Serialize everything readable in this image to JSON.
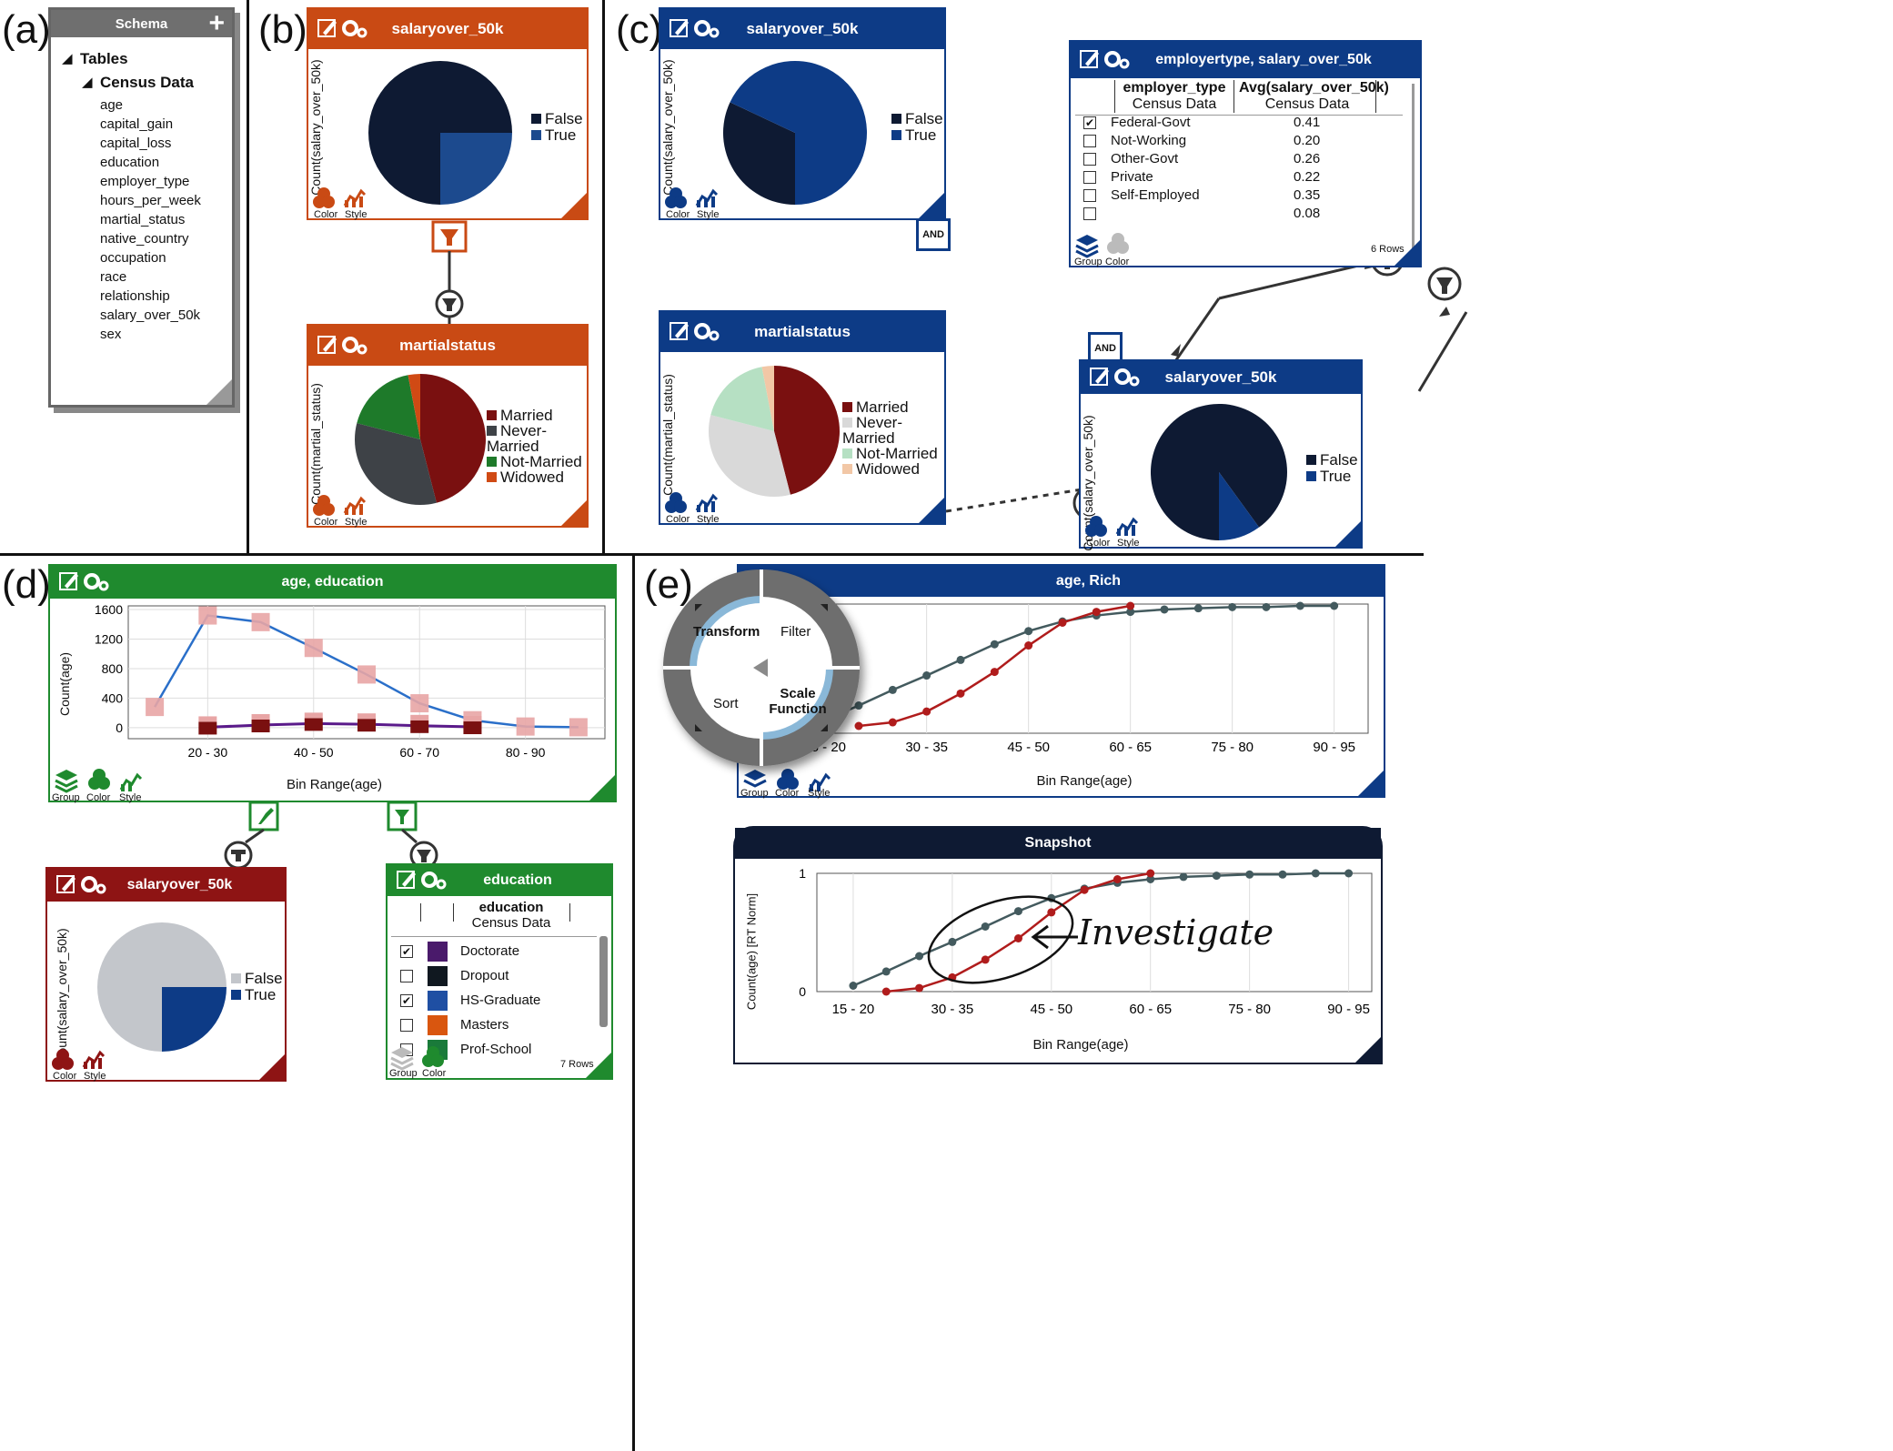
{
  "panel_labels": [
    "(a)",
    "(b)",
    "(c)",
    "(d)",
    "(e)"
  ],
  "schema": {
    "title": "Schema",
    "tables_label": "Tables",
    "table_name": "Census Data",
    "fields": [
      "age",
      "capital_gain",
      "capital_loss",
      "education",
      "employer_type",
      "hours_per_week",
      "martial_status",
      "native_country",
      "occupation",
      "race",
      "relationship",
      "salary_over_50k",
      "sex"
    ]
  },
  "footer": {
    "color": "Color",
    "style": "Style",
    "group": "Group"
  },
  "legend_salary": [
    "False",
    "True"
  ],
  "legend_marital": [
    "Married",
    "Never-Married",
    "Not-Married",
    "Widowed"
  ],
  "b": {
    "top_title": "salaryover_50k",
    "top_axis": "Count(salary_over_50k)",
    "bottom_title": "martialstatus",
    "bottom_axis": "Count(martial_status)"
  },
  "c": {
    "top_title": "salaryover_50k",
    "top_axis": "Count(salary_over_50k)",
    "mid_title": "martialstatus",
    "mid_axis": "Count(martial_status)",
    "and_label": "AND",
    "emp_title": "employertype, salary_over_50k",
    "emp_col1": "employer_type",
    "emp_col1_sub": "Census Data",
    "emp_col2": "Avg(salary_over_50k)",
    "emp_col2_sub": "Census Data",
    "emp_rows": [
      {
        "name": "Federal-Govt",
        "value": "0.41",
        "checked": true
      },
      {
        "name": "Not-Working",
        "value": "0.20",
        "checked": false
      },
      {
        "name": "Other-Govt",
        "value": "0.26",
        "checked": false
      },
      {
        "name": "Private",
        "value": "0.22",
        "checked": false
      },
      {
        "name": "Self-Employed",
        "value": "0.35",
        "checked": false
      },
      {
        "name": "",
        "value": "0.08",
        "checked": false
      }
    ],
    "emp_rowcount": "6  Rows",
    "br_title": "salaryover_50k",
    "br_axis": "Count(salary_over_50k)"
  },
  "d": {
    "chart_title": "age, education",
    "y_label": "Count(age)",
    "x_label": "Bin Range(age)",
    "salary_title": "salaryover_50k",
    "salary_axis": "Count(salary_over_50k)",
    "edu_title": "education",
    "edu_col": "education",
    "edu_col_sub": "Census Data",
    "edu_rows": [
      {
        "name": "Doctorate",
        "checked": true,
        "color": "#4a1a6b"
      },
      {
        "name": "Dropout",
        "checked": false,
        "color": "#101820"
      },
      {
        "name": "HS-Graduate",
        "checked": true,
        "color": "#1f4fa3"
      },
      {
        "name": "Masters",
        "checked": false,
        "color": "#d9560f"
      },
      {
        "name": "Prof-School",
        "checked": false,
        "color": "#1a7a3a"
      }
    ],
    "edu_rowcount": "7  Rows"
  },
  "e": {
    "chart_title": "age, Rich",
    "x_label": "Bin Range(age)",
    "menu": [
      "Transform",
      "Filter",
      "Sort",
      "Scale Function"
    ],
    "snapshot_title": "Snapshot",
    "snapshot_y_label": "Count(age) [RT Norm]",
    "snapshot_x_label": "Bin Range(age)",
    "annotation": "Investigate"
  },
  "colors": {
    "orange": "#c94a14",
    "blue": "#0d3b86",
    "green": "#1f8a2e",
    "darkred": "#8e1414",
    "navy": "#0e1a33",
    "gray_ring": "#6e6e6e"
  },
  "chart_data": [
    {
      "type": "pie",
      "name": "b-top",
      "labels": [
        "False",
        "True"
      ],
      "values": [
        75,
        25
      ]
    },
    {
      "type": "pie",
      "name": "b-bottom",
      "labels": [
        "Married",
        "Never-Married",
        "Not-Married",
        "Widowed"
      ],
      "values": [
        46,
        33,
        18,
        3
      ]
    },
    {
      "type": "pie",
      "name": "c-top",
      "labels": [
        "False",
        "True"
      ],
      "values": [
        32,
        68
      ]
    },
    {
      "type": "pie",
      "name": "c-mid",
      "labels": [
        "Married",
        "Never-Married",
        "Not-Married",
        "Widowed"
      ],
      "values": [
        46,
        33,
        18,
        3
      ]
    },
    {
      "type": "pie",
      "name": "c-bottom-right",
      "labels": [
        "False",
        "True"
      ],
      "values": [
        90,
        10
      ]
    },
    {
      "type": "pie",
      "name": "d-salary",
      "labels": [
        "False",
        "True"
      ],
      "values": [
        75,
        25
      ]
    },
    {
      "type": "line",
      "name": "d-age-education",
      "x_ticks": [
        "20 - 30",
        "40 - 50",
        "60 - 70",
        "80 - 90"
      ],
      "y_ticks": [
        "0",
        "400",
        "800",
        "1200",
        "1600"
      ],
      "ylim": [
        -150,
        1650
      ],
      "x": [
        15,
        25,
        35,
        45,
        55,
        65,
        75,
        85,
        95
      ],
      "series": [
        {
          "values": [
            280,
            1520,
            1430,
            1080,
            720,
            330,
            100,
            15,
            5
          ]
        },
        {
          "values": [
            null,
            5,
            35,
            55,
            45,
            25,
            10,
            null,
            null
          ]
        }
      ]
    },
    {
      "type": "line",
      "name": "e-age-rich",
      "x_ticks": [
        "15 - 20",
        "30 - 35",
        "45 - 50",
        "60 - 65",
        "75 - 80",
        "90 - 95"
      ],
      "x": [
        17.5,
        22.5,
        27.5,
        32.5,
        37.5,
        42.5,
        47.5,
        52.5,
        57.5,
        62.5,
        67.5,
        72.5,
        77.5,
        82.5,
        87.5,
        92.5
      ],
      "series": [
        {
          "values": [
            0.05,
            0.17,
            0.3,
            0.42,
            0.55,
            0.68,
            0.79,
            0.87,
            0.92,
            0.95,
            0.97,
            0.98,
            0.99,
            0.99,
            1.0,
            1.0
          ]
        },
        {
          "values": [
            null,
            0.0,
            0.03,
            0.12,
            0.27,
            0.45,
            0.67,
            0.86,
            0.95,
            1.0,
            null,
            null,
            null,
            null,
            null,
            null
          ]
        }
      ]
    },
    {
      "type": "line",
      "name": "e-snapshot",
      "x_ticks": [
        "15 - 20",
        "30 - 35",
        "45 - 50",
        "60 - 65",
        "75 - 80",
        "90 - 95"
      ],
      "y_ticks": [
        "0",
        "1"
      ],
      "ylim": [
        0,
        1
      ],
      "x": [
        17.5,
        22.5,
        27.5,
        32.5,
        37.5,
        42.5,
        47.5,
        52.5,
        57.5,
        62.5,
        67.5,
        72.5,
        77.5,
        82.5,
        87.5,
        92.5
      ],
      "series": [
        {
          "values": [
            0.05,
            0.17,
            0.3,
            0.42,
            0.55,
            0.68,
            0.79,
            0.87,
            0.92,
            0.95,
            0.97,
            0.98,
            0.99,
            0.99,
            1.0,
            1.0
          ]
        },
        {
          "values": [
            null,
            0.0,
            0.03,
            0.12,
            0.27,
            0.45,
            0.67,
            0.86,
            0.95,
            1.0,
            null,
            null,
            null,
            null,
            null,
            null
          ]
        }
      ]
    }
  ]
}
